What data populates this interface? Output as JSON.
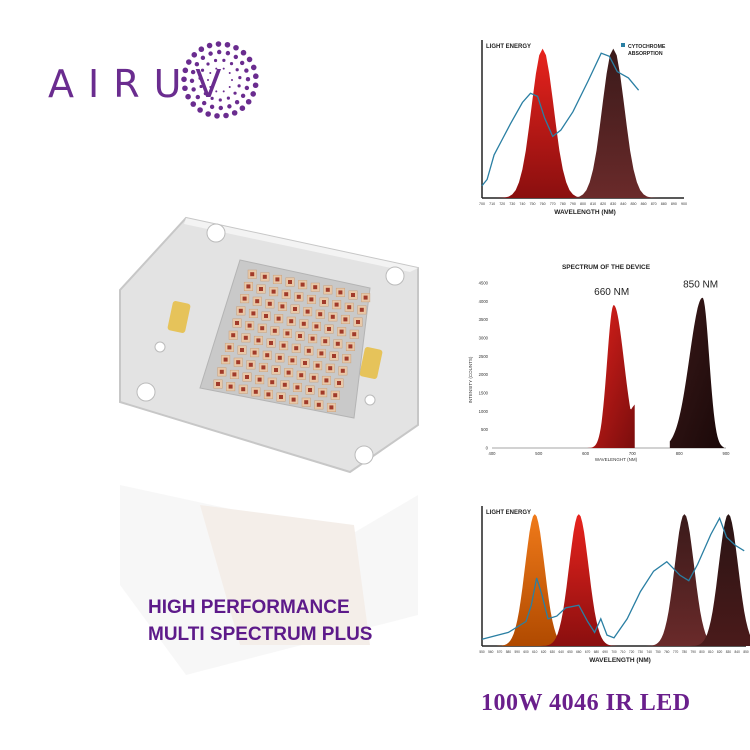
{
  "brand": {
    "name": "AIRUV",
    "color": "#6a2c8f"
  },
  "headline": {
    "line1": "HIGH PERFORMANCE",
    "line2": "MULTI SPECTRUM PLUS",
    "color": "#5d1a8a"
  },
  "product_title": "100W 4046 IR LED",
  "chart_data": [
    {
      "type": "area",
      "ylabel": "LIGHT ENERGY",
      "xlabel": "WAVELENGTH (NM)",
      "x_ticks": [
        "700",
        "710",
        "720",
        "730",
        "740",
        "750",
        "760",
        "770",
        "780",
        "790",
        "800",
        "810",
        "820",
        "830",
        "840",
        "850",
        "860",
        "870",
        "880",
        "890",
        "900"
      ],
      "xlim": [
        700,
        900
      ],
      "legend": {
        "label": "CYTOCHROME ABSORPTION",
        "color": "#2a7fa3",
        "placement": "top-right"
      },
      "series": [
        {
          "peak_nm": 760,
          "color": "#e8231d"
        },
        {
          "peak_nm": 830,
          "color": "#3a1a1a"
        }
      ]
    },
    {
      "type": "area",
      "title": "SPECTRUM OF THE DEVICE",
      "ylabel": "INTENSITY (COUNTS)",
      "xlabel": "WAVELENGHT (NM)",
      "y_ticks": [
        "0",
        "500",
        "1000",
        "1500",
        "2000",
        "2500",
        "3000",
        "3500",
        "4000",
        "4500"
      ],
      "ylim": [
        0,
        4500
      ],
      "x_ticks": [
        "400",
        "500",
        "600",
        "700",
        "800",
        "900"
      ],
      "xlim": [
        400,
        900
      ],
      "peaks": [
        {
          "label": "660 NM",
          "x": 660,
          "y": 3900
        },
        {
          "label": "850 NM",
          "x": 850,
          "y": 4100
        }
      ]
    },
    {
      "type": "area",
      "ylabel": "LIGHT ENERGY",
      "xlabel": "WAVELENGTH (NM)",
      "x_ticks": [
        "550",
        "560",
        "570",
        "580",
        "590",
        "600",
        "610",
        "620",
        "630",
        "640",
        "650",
        "660",
        "670",
        "680",
        "690",
        "700",
        "710",
        "720",
        "730",
        "740",
        "750",
        "760",
        "770",
        "780",
        "790",
        "800",
        "810",
        "820",
        "830",
        "840",
        "850"
      ],
      "xlim": [
        550,
        850
      ],
      "series": [
        {
          "peak_nm": 610,
          "color": "#f07a1a"
        },
        {
          "peak_nm": 660,
          "color": "#e8231d"
        },
        {
          "peak_nm": 780,
          "color": "#3a1a1a"
        },
        {
          "peak_nm": 830,
          "color": "#2a1414"
        }
      ]
    }
  ]
}
